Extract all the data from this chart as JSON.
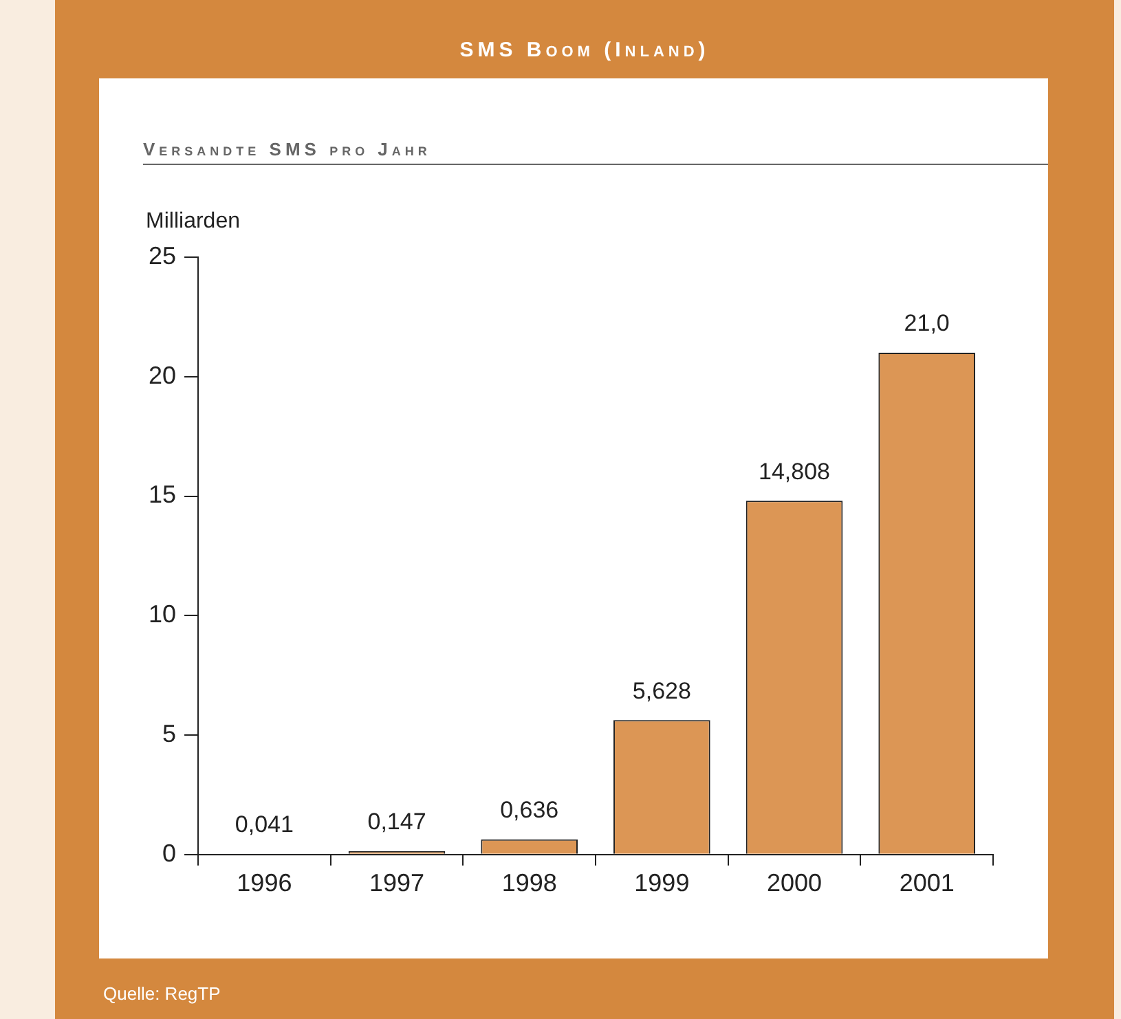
{
  "chart_data": {
    "type": "bar",
    "title": "SMS Boom (Inland)",
    "subtitle": "Versandte SMS pro Jahr",
    "ylabel": "Milliarden",
    "categories": [
      "1996",
      "1997",
      "1998",
      "1999",
      "2000",
      "2001"
    ],
    "values": [
      0.041,
      0.147,
      0.636,
      5.628,
      14.808,
      21.0
    ],
    "value_labels": [
      "0,041",
      "0,147",
      "0,636",
      "5,628",
      "14,808",
      "21,0"
    ],
    "color": "#dc9655",
    "ylim": [
      0,
      25
    ],
    "yticks": [
      0,
      5,
      10,
      15,
      20,
      25
    ],
    "grid": false,
    "legend": false,
    "annotations": [
      "Quelle: RegTP"
    ]
  }
}
